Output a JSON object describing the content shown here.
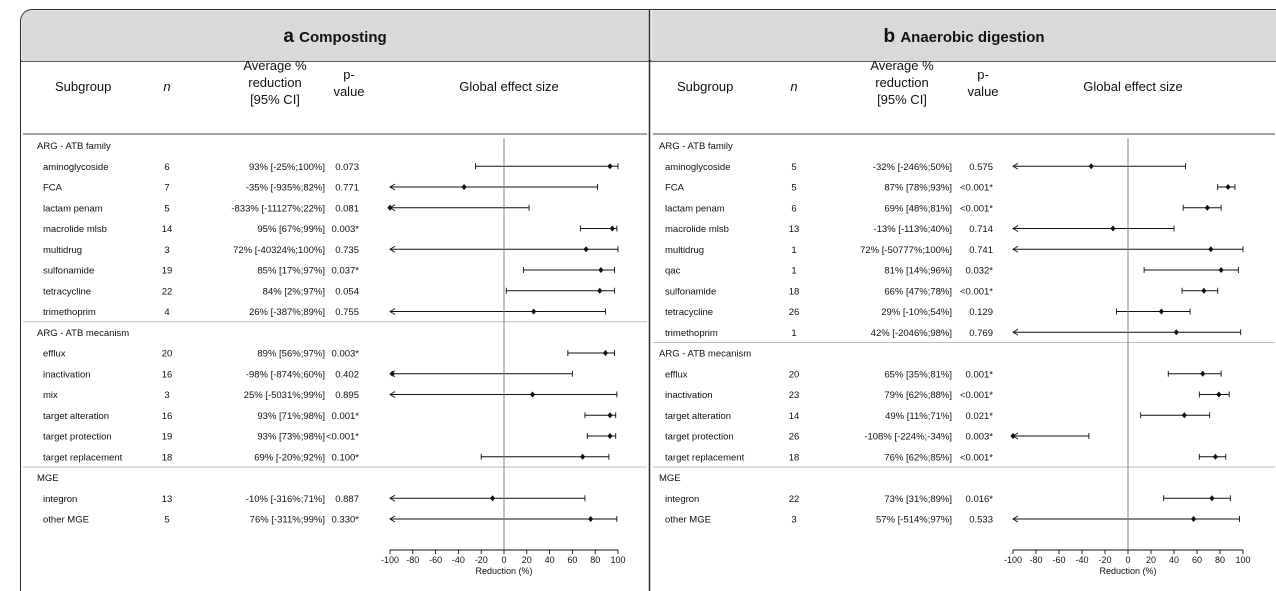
{
  "chart_data": [
    {
      "type": "forest",
      "letter": "a",
      "title": "Composting",
      "headers": {
        "subgroup": "Subgroup",
        "n": "n",
        "avg": [
          "Average %",
          "reduction",
          "[95% CI]"
        ],
        "p": [
          "p-",
          "value"
        ],
        "effect": "Global effect size"
      },
      "xlabel": "Reduction (%)",
      "xlim": [
        -100,
        100
      ],
      "xticks": [
        -100,
        -80,
        -60,
        -40,
        -20,
        0,
        20,
        40,
        60,
        80,
        100
      ],
      "groups": [
        {
          "name": "ARG - ATB family",
          "rows": [
            {
              "label": "aminoglycoside",
              "n": "6",
              "ci_text": "93% [-25%;100%]",
              "p": "0.073",
              "est": 93,
              "lo": -25,
              "hi": 100
            },
            {
              "label": "FCA",
              "n": "7",
              "ci_text": "-35% [-935%;82%]",
              "p": "0.771",
              "est": -35,
              "lo": -935,
              "hi": 82
            },
            {
              "label": "lactam penam",
              "n": "5",
              "ci_text": "-833% [-11127%;22%]",
              "p": "0.081",
              "est": -833,
              "lo": -11127,
              "hi": 22
            },
            {
              "label": "macrolide mlsb",
              "n": "14",
              "ci_text": "95% [67%;99%]",
              "p": "0.003*",
              "est": 95,
              "lo": 67,
              "hi": 99
            },
            {
              "label": "multidrug",
              "n": "3",
              "ci_text": "72% [-40324%;100%]",
              "p": "0.735",
              "est": 72,
              "lo": -40324,
              "hi": 100
            },
            {
              "label": "sulfonamide",
              "n": "19",
              "ci_text": "85% [17%;97%]",
              "p": "0.037*",
              "est": 85,
              "lo": 17,
              "hi": 97
            },
            {
              "label": "tetracycline",
              "n": "22",
              "ci_text": "84% [2%;97%]",
              "p": "0.054",
              "est": 84,
              "lo": 2,
              "hi": 97
            },
            {
              "label": "trimethoprim",
              "n": "4",
              "ci_text": "26% [-387%;89%]",
              "p": "0.755",
              "est": 26,
              "lo": -387,
              "hi": 89
            }
          ]
        },
        {
          "name": "ARG - ATB mecanism",
          "rows": [
            {
              "label": "efflux",
              "n": "20",
              "ci_text": "89% [56%;97%]",
              "p": "0.003*",
              "est": 89,
              "lo": 56,
              "hi": 97
            },
            {
              "label": "inactivation",
              "n": "16",
              "ci_text": "-98% [-874%;60%]",
              "p": "0.402",
              "est": -98,
              "lo": -874,
              "hi": 60
            },
            {
              "label": "mix",
              "n": "3",
              "ci_text": "25% [-5031%;99%]",
              "p": "0.895",
              "est": 25,
              "lo": -5031,
              "hi": 99
            },
            {
              "label": "target alteration",
              "n": "16",
              "ci_text": "93% [71%;98%]",
              "p": "0.001*",
              "est": 93,
              "lo": 71,
              "hi": 98
            },
            {
              "label": "target protection",
              "n": "19",
              "ci_text": "93% [73%;98%]",
              "p": "<0.001*",
              "est": 93,
              "lo": 73,
              "hi": 98
            },
            {
              "label": "target replacement",
              "n": "18",
              "ci_text": "69% [-20%;92%]",
              "p": "0.100*",
              "est": 69,
              "lo": -20,
              "hi": 92
            }
          ]
        },
        {
          "name": "MGE",
          "rows": [
            {
              "label": "integron",
              "n": "13",
              "ci_text": "-10% [-316%;71%]",
              "p": "0.887",
              "est": -10,
              "lo": -316,
              "hi": 71
            },
            {
              "label": "other MGE",
              "n": "5",
              "ci_text": "76% [-311%;99%]",
              "p": "0.330*",
              "est": 76,
              "lo": -311,
              "hi": 99
            }
          ]
        }
      ]
    },
    {
      "type": "forest",
      "letter": "b",
      "title": "Anaerobic digestion",
      "headers": {
        "subgroup": "Subgroup",
        "n": "n",
        "avg": [
          "Average %",
          "reduction",
          "[95% CI]"
        ],
        "p": [
          "p-",
          "value"
        ],
        "effect": "Global effect size"
      },
      "xlabel": "Reduction (%)",
      "xlim": [
        -100,
        100
      ],
      "xticks": [
        -100,
        -80,
        -60,
        -40,
        -20,
        0,
        20,
        40,
        60,
        80,
        100
      ],
      "groups": [
        {
          "name": "ARG - ATB family",
          "rows": [
            {
              "label": "aminoglycoside",
              "n": "5",
              "ci_text": "-32% [-246%;50%]",
              "p": "0.575",
              "est": -32,
              "lo": -246,
              "hi": 50
            },
            {
              "label": "FCA",
              "n": "5",
              "ci_text": "87% [78%;93%]",
              "p": "<0.001*",
              "est": 87,
              "lo": 78,
              "hi": 93
            },
            {
              "label": "lactam penam",
              "n": "6",
              "ci_text": "69% [48%;81%]",
              "p": "<0.001*",
              "est": 69,
              "lo": 48,
              "hi": 81
            },
            {
              "label": "macrolide mlsb",
              "n": "13",
              "ci_text": "-13% [-113%;40%]",
              "p": "0.714",
              "est": -13,
              "lo": -113,
              "hi": 40
            },
            {
              "label": "multidrug",
              "n": "1",
              "ci_text": "72% [-50777%;100%]",
              "p": "0.741",
              "est": 72,
              "lo": -50777,
              "hi": 100
            },
            {
              "label": "qac",
              "n": "1",
              "ci_text": "81% [14%;96%]",
              "p": "0.032*",
              "est": 81,
              "lo": 14,
              "hi": 96
            },
            {
              "label": "sulfonamide",
              "n": "18",
              "ci_text": "66% [47%;78%]",
              "p": "<0.001*",
              "est": 66,
              "lo": 47,
              "hi": 78
            },
            {
              "label": "tetracycline",
              "n": "26",
              "ci_text": "29% [-10%;54%]",
              "p": "0.129",
              "est": 29,
              "lo": -10,
              "hi": 54
            },
            {
              "label": "trimethoprim",
              "n": "1",
              "ci_text": "42% [-2046%;98%]",
              "p": "0.769",
              "est": 42,
              "lo": -2046,
              "hi": 98
            }
          ]
        },
        {
          "name": "ARG - ATB mecanism",
          "rows": [
            {
              "label": "efflux",
              "n": "20",
              "ci_text": "65% [35%;81%]",
              "p": "0.001*",
              "est": 65,
              "lo": 35,
              "hi": 81
            },
            {
              "label": "inactivation",
              "n": "23",
              "ci_text": "79% [62%;88%]",
              "p": "<0.001*",
              "est": 79,
              "lo": 62,
              "hi": 88
            },
            {
              "label": "target alteration",
              "n": "14",
              "ci_text": "49% [11%;71%]",
              "p": "0.021*",
              "est": 49,
              "lo": 11,
              "hi": 71
            },
            {
              "label": "target protection",
              "n": "26",
              "ci_text": "-108% [-224%;-34%]",
              "p": "0.003*",
              "est": -108,
              "lo": -224,
              "hi": -34
            },
            {
              "label": "target replacement",
              "n": "18",
              "ci_text": "76% [62%;85%]",
              "p": "<0.001*",
              "est": 76,
              "lo": 62,
              "hi": 85
            }
          ]
        },
        {
          "name": "MGE",
          "rows": [
            {
              "label": "integron",
              "n": "22",
              "ci_text": "73% [31%;89%]",
              "p": "0.016*",
              "est": 73,
              "lo": 31,
              "hi": 89
            },
            {
              "label": "other MGE",
              "n": "3",
              "ci_text": "57% [-514%;97%]",
              "p": "0.533",
              "est": 57,
              "lo": -514,
              "hi": 97
            }
          ]
        }
      ]
    }
  ]
}
